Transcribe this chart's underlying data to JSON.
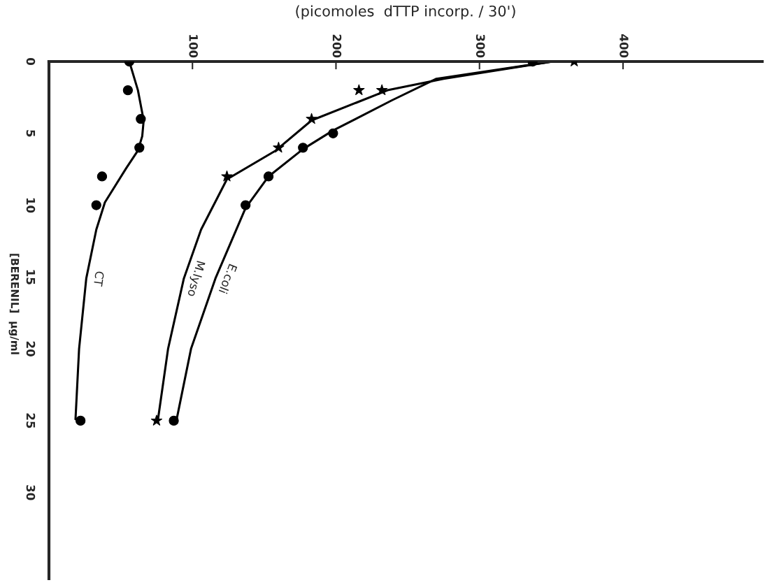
{
  "chart_data": {
    "type": "line",
    "orientation": "horizontal",
    "xlabel": "(picomoles  dTTP incorp. / 30')",
    "ylabel": "[BERENIL]  µg/ml",
    "xlim": [
      0,
      497
    ],
    "xticks": [
      100,
      200,
      300,
      400
    ],
    "ylim": [
      36,
      0
    ],
    "yticks": [
      0,
      5,
      10,
      15,
      20,
      25,
      30
    ],
    "grid": false,
    "legend": false,
    "series": [
      {
        "name": "CT",
        "marker": "none",
        "color": "#000000",
        "x": [
          0,
          2,
          4.1,
          5.2,
          6.2,
          7.4,
          9.8,
          11.7,
          15.1,
          20,
          24.9
        ],
        "values": [
          56,
          62,
          66,
          65,
          62,
          54,
          39,
          33,
          26,
          21,
          18.5
        ]
      },
      {
        "name": "M.lyso",
        "marker": "none",
        "color": "#000000",
        "x": [
          0,
          1.2,
          2,
          4.1,
          6.2,
          8.2,
          11.7,
          15.1,
          20,
          24.9
        ],
        "values": [
          351,
          275,
          236,
          183,
          158,
          124,
          106,
          94,
          83,
          76
        ]
      },
      {
        "name": "E.coli",
        "marker": "none",
        "color": "#000000",
        "x": [
          0,
          1.2,
          2.7,
          4.8,
          6.1,
          8,
          10.2,
          15.1,
          20,
          24.9
        ],
        "values": [
          351,
          270,
          239,
          198,
          177,
          153,
          137,
          116,
          99,
          89
        ]
      },
      {
        "type": "scatter",
        "marker": "circle",
        "color": "#000000",
        "x": [
          0,
          2,
          4,
          6,
          8,
          10,
          25
        ],
        "values": [
          56,
          55,
          64,
          63,
          37,
          33,
          22
        ]
      },
      {
        "type": "scatter",
        "marker": "star",
        "color": "#000000",
        "x": [
          0,
          2,
          2,
          4,
          6,
          8,
          25
        ],
        "values": [
          366,
          216,
          232,
          183,
          160,
          124,
          75
        ]
      },
      {
        "type": "scatter",
        "marker": "circle",
        "color": "#000000",
        "x": [
          0,
          5,
          6,
          8,
          10,
          25
        ],
        "values": [
          337,
          198,
          177,
          153,
          137,
          87
        ]
      }
    ]
  }
}
